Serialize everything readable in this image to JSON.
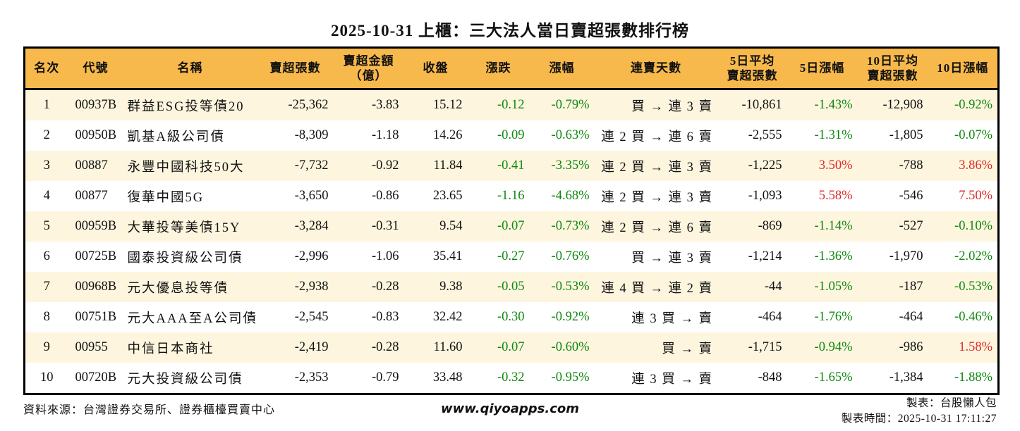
{
  "title": "2025-10-31 上櫃：三大法人當日賣超張數排行榜",
  "colors": {
    "header_bg": "#F7B94C",
    "alt_bg": "#FDF5DE",
    "pos": "#DE2A28",
    "neg": "#0E870E",
    "border": "#000000"
  },
  "chart_data": {
    "type": "table",
    "title": "2025-10-31 上櫃：三大法人當日賣超張數排行榜",
    "columns": [
      {
        "key": "rank",
        "label": "名次"
      },
      {
        "key": "code",
        "label": "代號"
      },
      {
        "key": "name",
        "label": "名稱"
      },
      {
        "key": "sell_volume",
        "label": "賣超張數"
      },
      {
        "key": "sell_amount",
        "label": "賣超金額\n（億）"
      },
      {
        "key": "close",
        "label": "收盤"
      },
      {
        "key": "change",
        "label": "漲跌"
      },
      {
        "key": "change_pct",
        "label": "漲幅"
      },
      {
        "key": "sell_streak",
        "label": "連賣天數"
      },
      {
        "key": "avg5_sell",
        "label": "5日平均\n賣超張數"
      },
      {
        "key": "pct5",
        "label": "5日漲幅"
      },
      {
        "key": "avg10_sell",
        "label": "10日平均\n賣超張數"
      },
      {
        "key": "pct10",
        "label": "10日漲幅"
      }
    ],
    "rows": [
      {
        "rank": "1",
        "code": "00937B",
        "name": "群益ESG投等債20",
        "sell_volume": "-25,362",
        "sell_amount": "-3.83",
        "close": "15.12",
        "change": "-0.12",
        "change_pct": "-0.79%",
        "sell_streak": "買 → 連 3 賣",
        "avg5_sell": "-10,861",
        "pct5": "-1.43%",
        "avg10_sell": "-12,908",
        "pct10": "-0.92%"
      },
      {
        "rank": "2",
        "code": "00950B",
        "name": "凱基A級公司債",
        "sell_volume": "-8,309",
        "sell_amount": "-1.18",
        "close": "14.26",
        "change": "-0.09",
        "change_pct": "-0.63%",
        "sell_streak": "連 2 買 → 連 6 賣",
        "avg5_sell": "-2,555",
        "pct5": "-1.31%",
        "avg10_sell": "-1,805",
        "pct10": "-0.07%"
      },
      {
        "rank": "3",
        "code": "00887",
        "name": "永豐中國科技50大",
        "sell_volume": "-7,732",
        "sell_amount": "-0.92",
        "close": "11.84",
        "change": "-0.41",
        "change_pct": "-3.35%",
        "sell_streak": "連 2 買 → 連 3 賣",
        "avg5_sell": "-1,225",
        "pct5": "3.50%",
        "avg10_sell": "-788",
        "pct10": "3.86%"
      },
      {
        "rank": "4",
        "code": "00877",
        "name": "復華中國5G",
        "sell_volume": "-3,650",
        "sell_amount": "-0.86",
        "close": "23.65",
        "change": "-1.16",
        "change_pct": "-4.68%",
        "sell_streak": "連 2 買 → 連 3 賣",
        "avg5_sell": "-1,093",
        "pct5": "5.58%",
        "avg10_sell": "-546",
        "pct10": "7.50%"
      },
      {
        "rank": "5",
        "code": "00959B",
        "name": "大華投等美債15Y",
        "sell_volume": "-3,284",
        "sell_amount": "-0.31",
        "close": "9.54",
        "change": "-0.07",
        "change_pct": "-0.73%",
        "sell_streak": "連 2 買 → 連 6 賣",
        "avg5_sell": "-869",
        "pct5": "-1.14%",
        "avg10_sell": "-527",
        "pct10": "-0.10%"
      },
      {
        "rank": "6",
        "code": "00725B",
        "name": "國泰投資級公司債",
        "sell_volume": "-2,996",
        "sell_amount": "-1.06",
        "close": "35.41",
        "change": "-0.27",
        "change_pct": "-0.76%",
        "sell_streak": "買 → 連 3 賣",
        "avg5_sell": "-1,214",
        "pct5": "-1.36%",
        "avg10_sell": "-1,970",
        "pct10": "-2.02%"
      },
      {
        "rank": "7",
        "code": "00968B",
        "name": "元大優息投等債",
        "sell_volume": "-2,938",
        "sell_amount": "-0.28",
        "close": "9.38",
        "change": "-0.05",
        "change_pct": "-0.53%",
        "sell_streak": "連 4 買 → 連 2 賣",
        "avg5_sell": "-44",
        "pct5": "-1.05%",
        "avg10_sell": "-187",
        "pct10": "-0.53%"
      },
      {
        "rank": "8",
        "code": "00751B",
        "name": "元大AAA至A公司債",
        "sell_volume": "-2,545",
        "sell_amount": "-0.83",
        "close": "32.42",
        "change": "-0.30",
        "change_pct": "-0.92%",
        "sell_streak": "連 3 買 → 賣",
        "avg5_sell": "-464",
        "pct5": "-1.76%",
        "avg10_sell": "-464",
        "pct10": "-0.46%"
      },
      {
        "rank": "9",
        "code": "00955",
        "name": "中信日本商社",
        "sell_volume": "-2,419",
        "sell_amount": "-0.28",
        "close": "11.60",
        "change": "-0.07",
        "change_pct": "-0.60%",
        "sell_streak": "買 → 賣",
        "avg5_sell": "-1,715",
        "pct5": "-0.94%",
        "avg10_sell": "-986",
        "pct10": "1.58%"
      },
      {
        "rank": "10",
        "code": "00720B",
        "name": "元大投資級公司債",
        "sell_volume": "-2,353",
        "sell_amount": "-0.79",
        "close": "33.48",
        "change": "-0.32",
        "change_pct": "-0.95%",
        "sell_streak": "連 3 買 → 賣",
        "avg5_sell": "-848",
        "pct5": "-1.65%",
        "avg10_sell": "-1,384",
        "pct10": "-1.88%"
      }
    ]
  },
  "footer": {
    "source": "資料來源：台灣證券交易所、證券櫃檯買賣中心",
    "website": "www.qiyoapps.com",
    "made_by": "製表：台股懶人包",
    "made_time": "製表時間：2025-10-31 17:11:27"
  }
}
